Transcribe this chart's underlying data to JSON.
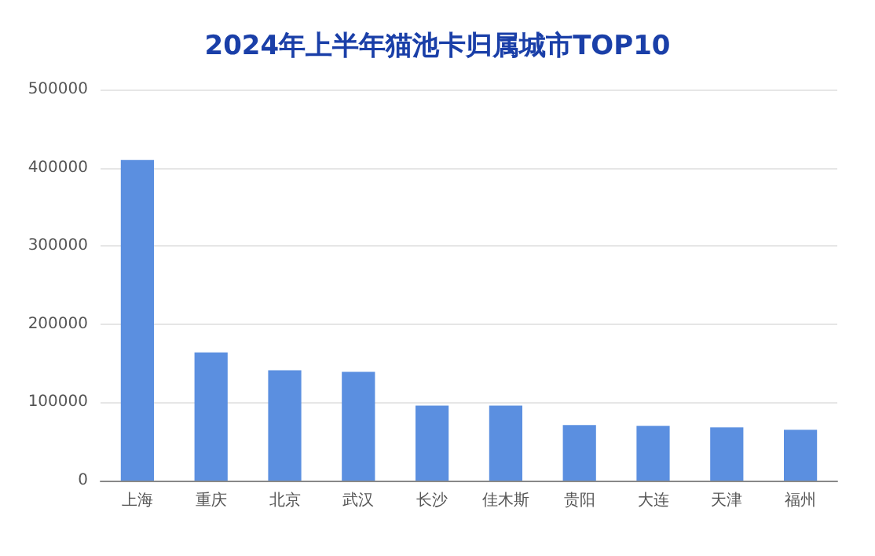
{
  "chart_data": {
    "type": "bar",
    "title": "2024年上半年猫池卡归属城市TOP10",
    "categories": [
      "上海",
      "重庆",
      "北京",
      "武汉",
      "长沙",
      "佳木斯",
      "贵阳",
      "大连",
      "天津",
      "福州"
    ],
    "values": [
      410000,
      164000,
      141000,
      139000,
      96000,
      96000,
      71000,
      70000,
      68000,
      65000
    ],
    "color": "#5b8fe0",
    "ylim": [
      0,
      500000
    ],
    "yticks": [
      0,
      100000,
      200000,
      300000,
      400000,
      500000
    ],
    "grid": "y"
  }
}
